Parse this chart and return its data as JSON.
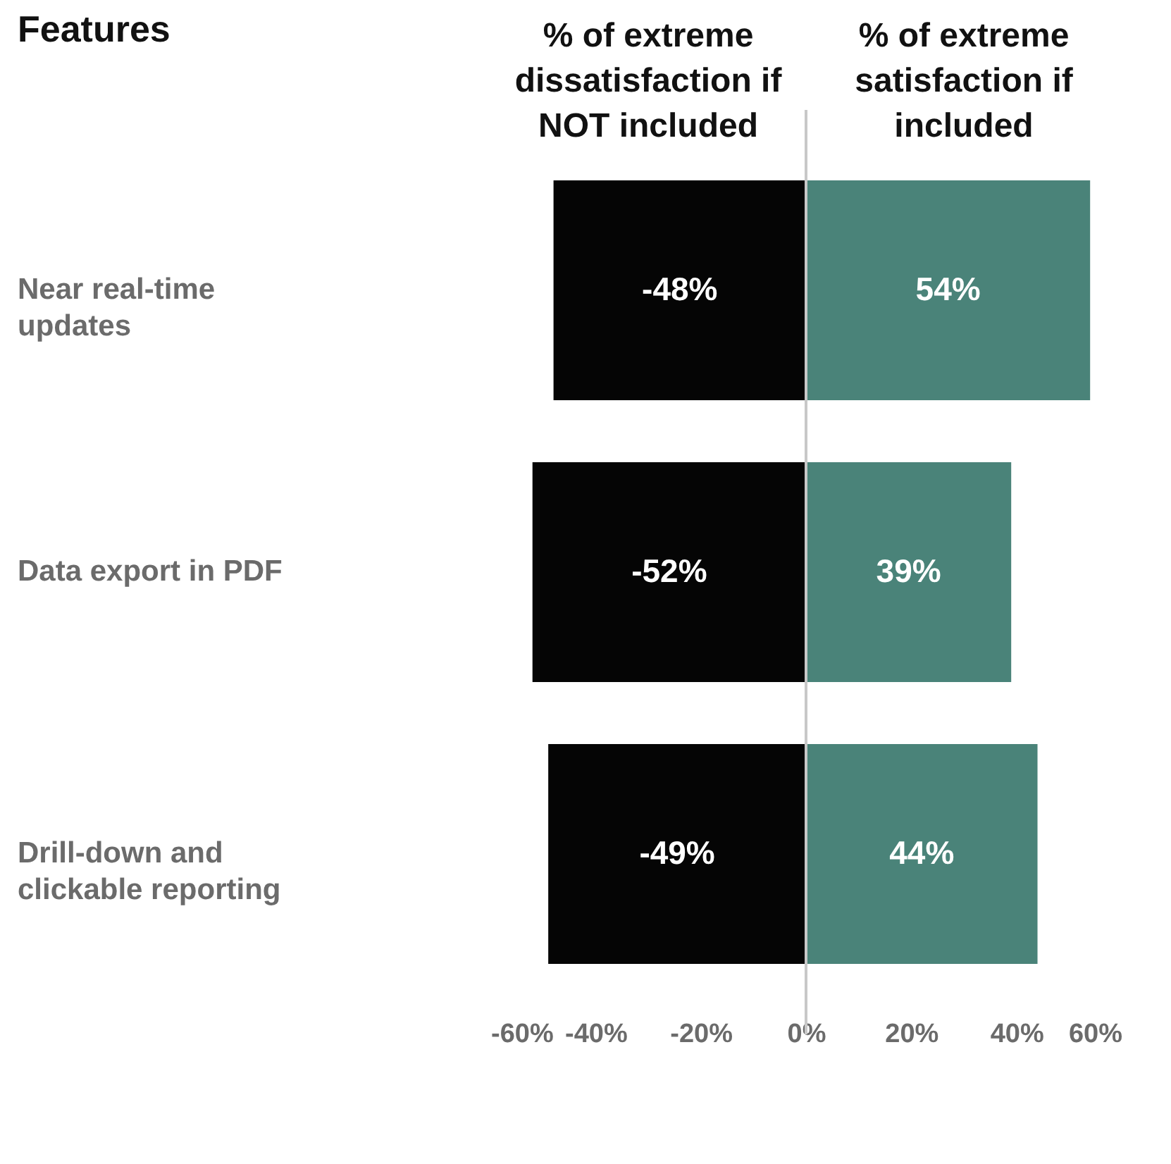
{
  "chart_data": {
    "type": "bar",
    "orientation": "horizontal",
    "stacked": true,
    "ylabel": "Features",
    "categories": [
      "Near real-time updates",
      "Data export in PDF",
      "Drill-down and clickable reporting"
    ],
    "series": [
      {
        "name": "% of extreme dissatisfaction if NOT included",
        "color": "#050505",
        "values": [
          -48,
          -52,
          -49
        ],
        "value_labels": [
          "-48%",
          "-52%",
          "-49%"
        ]
      },
      {
        "name": "% of extreme satisfaction if included",
        "color": "#4a8379",
        "values": [
          54,
          39,
          44
        ],
        "value_labels": [
          "54%",
          "39%",
          "44%"
        ]
      }
    ],
    "xlim": [
      -60,
      60
    ],
    "xticks": [
      {
        "value": -60,
        "label": "-60%"
      },
      {
        "value": -40,
        "label": "-40%"
      },
      {
        "value": -20,
        "label": "-20%"
      },
      {
        "value": 0,
        "label": "0%"
      },
      {
        "value": 20,
        "label": "20%"
      },
      {
        "value": 40,
        "label": "40%"
      },
      {
        "value": 60,
        "label": "60%"
      }
    ],
    "ref_lines": [
      {
        "axis": "x",
        "value": 0,
        "color": "#c8c8c8"
      }
    ],
    "grid": false,
    "legend": false
  }
}
